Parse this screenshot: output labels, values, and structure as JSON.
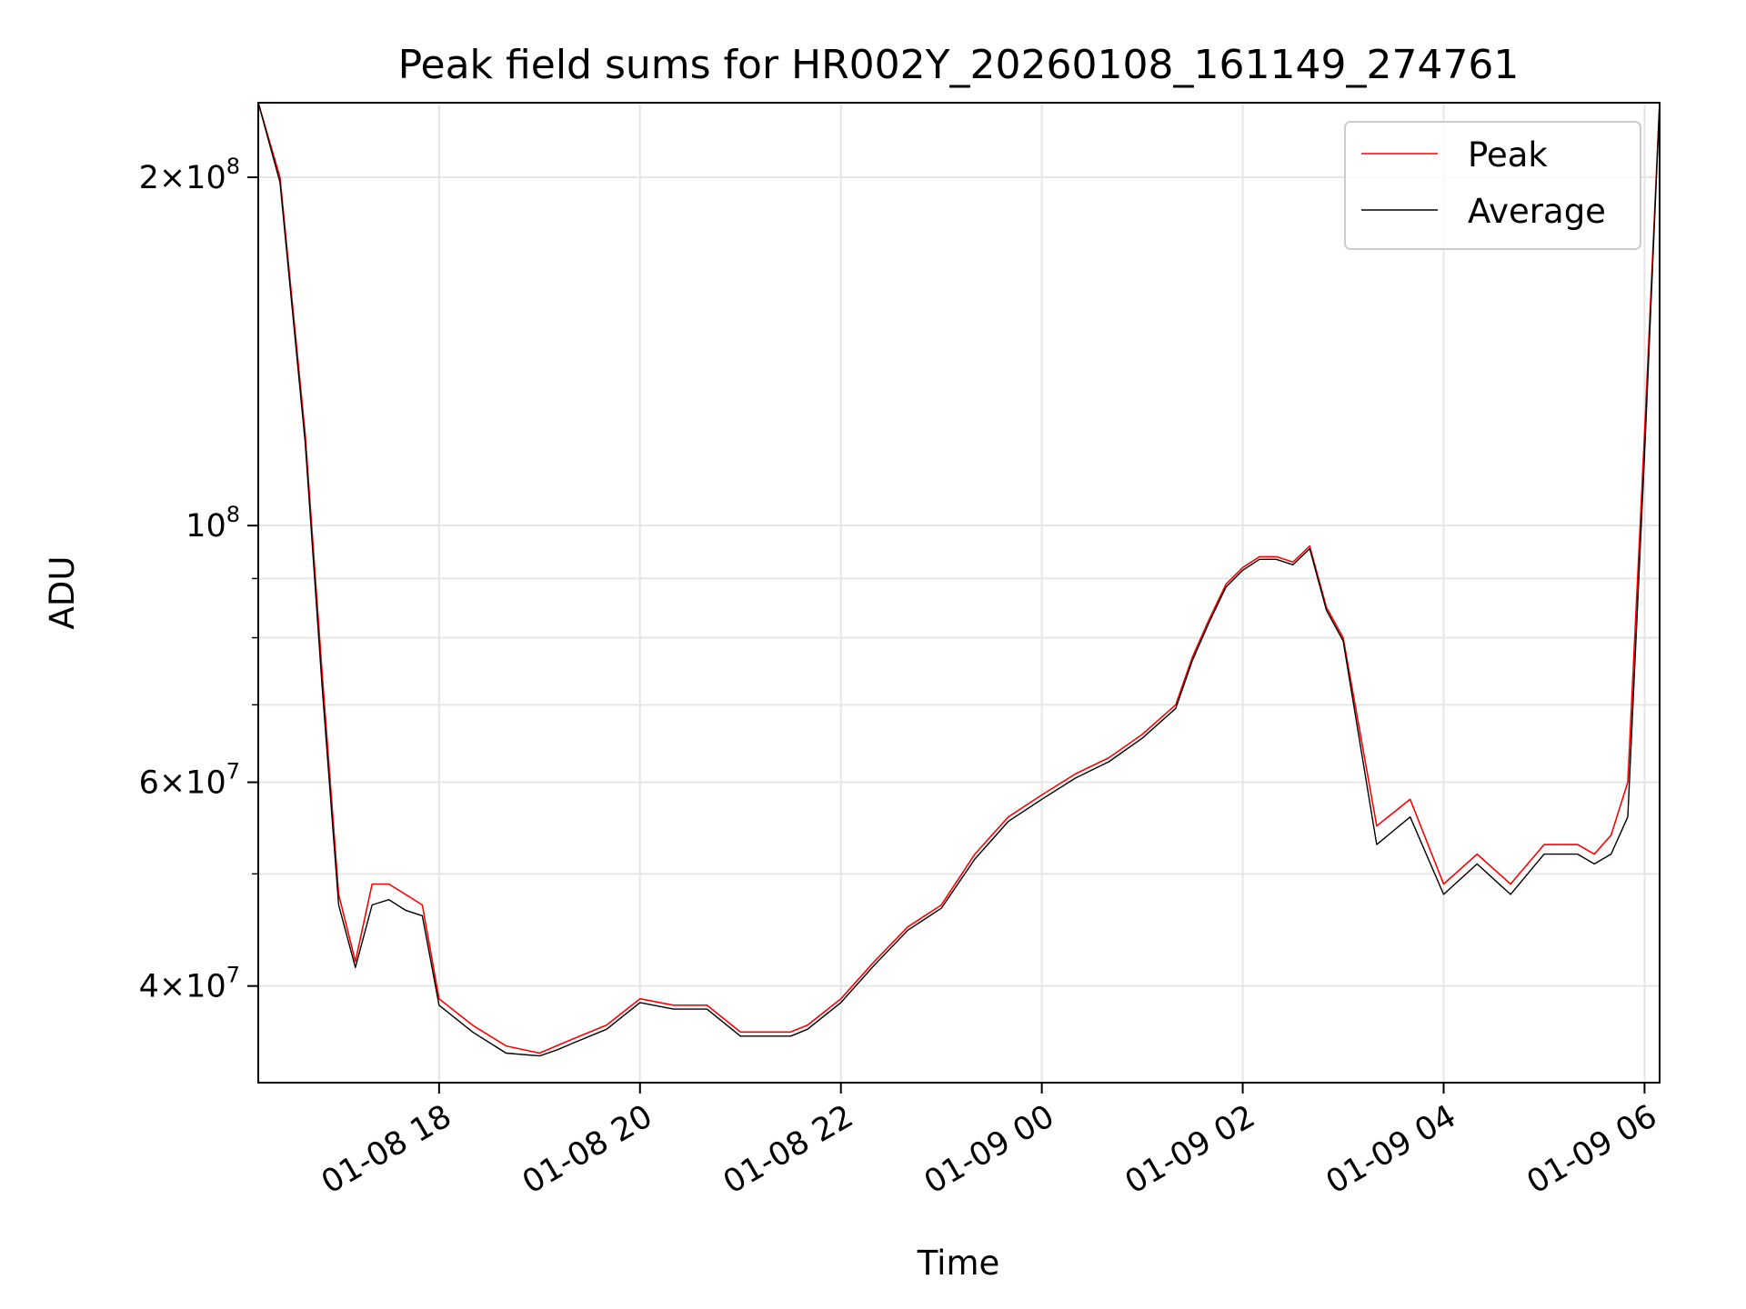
{
  "chart_data": {
    "type": "line",
    "title": "Peak field sums for HR002Y_20260108_161149_274761",
    "xlabel": "Time",
    "ylabel": "ADU",
    "yscale": "log",
    "ylim": [
      33000000,
      232000000
    ],
    "xlim": [
      "2026-01-08 16:12",
      "2026-01-09 06:09"
    ],
    "x_ticks": [
      "01-08 18",
      "01-08 20",
      "01-08 22",
      "01-09 00",
      "01-09 02",
      "01-09 04",
      "01-09 06"
    ],
    "y_ticks": [
      {
        "mantissa": "2",
        "exp": "8",
        "value": 200000000
      },
      {
        "mantissa": "",
        "exp": "8",
        "value": 100000000
      },
      {
        "mantissa": "6",
        "exp": "7",
        "value": 60000000
      },
      {
        "mantissa": "4",
        "exp": "7",
        "value": 40000000
      }
    ],
    "grid": true,
    "legend_position": "top-right",
    "colors": {
      "peak": "#ff0000",
      "average": "#000000"
    },
    "series": [
      {
        "name": "Peak",
        "x": [
          "2026-01-08 16:12",
          "2026-01-08 16:25",
          "2026-01-08 16:40",
          "2026-01-08 16:50",
          "2026-01-08 17:00",
          "2026-01-08 17:10",
          "2026-01-08 17:20",
          "2026-01-08 17:30",
          "2026-01-08 17:40",
          "2026-01-08 17:50",
          "2026-01-08 18:00",
          "2026-01-08 18:20",
          "2026-01-08 18:40",
          "2026-01-08 19:00",
          "2026-01-08 19:10",
          "2026-01-08 19:20",
          "2026-01-08 19:40",
          "2026-01-08 20:00",
          "2026-01-08 20:20",
          "2026-01-08 20:40",
          "2026-01-08 21:00",
          "2026-01-08 21:20",
          "2026-01-08 21:30",
          "2026-01-08 21:40",
          "2026-01-08 22:00",
          "2026-01-08 22:20",
          "2026-01-08 22:40",
          "2026-01-08 23:00",
          "2026-01-08 23:20",
          "2026-01-08 23:40",
          "2026-01-09 00:00",
          "2026-01-09 00:20",
          "2026-01-09 00:40",
          "2026-01-09 01:00",
          "2026-01-09 01:20",
          "2026-01-09 01:30",
          "2026-01-09 01:40",
          "2026-01-09 01:50",
          "2026-01-09 02:00",
          "2026-01-09 02:10",
          "2026-01-09 02:20",
          "2026-01-09 02:30",
          "2026-01-09 02:40",
          "2026-01-09 02:50",
          "2026-01-09 03:00",
          "2026-01-09 03:20",
          "2026-01-09 03:40",
          "2026-01-09 04:00",
          "2026-01-09 04:20",
          "2026-01-09 04:40",
          "2026-01-09 05:00",
          "2026-01-09 05:20",
          "2026-01-09 05:30",
          "2026-01-09 05:40",
          "2026-01-09 05:50",
          "2026-01-09 06:00",
          "2026-01-09 06:09"
        ],
        "y": [
          232000000,
          200000000,
          120000000,
          75000000,
          48000000,
          42000000,
          49000000,
          49000000,
          48000000,
          47000000,
          39000000,
          37000000,
          35500000,
          35000000,
          35500000,
          36000000,
          37000000,
          39000000,
          38500000,
          38500000,
          36500000,
          36500000,
          36500000,
          37000000,
          39000000,
          42000000,
          45000000,
          47000000,
          52000000,
          56000000,
          58500000,
          61000000,
          63000000,
          66000000,
          70000000,
          77000000,
          83000000,
          89000000,
          92000000,
          94000000,
          94000000,
          93000000,
          96000000,
          85000000,
          80000000,
          55000000,
          58000000,
          49000000,
          52000000,
          49000000,
          53000000,
          53000000,
          52000000,
          54000000,
          60000000,
          120000000,
          232000000
        ]
      },
      {
        "name": "Average",
        "x": [
          "2026-01-08 16:12",
          "2026-01-08 16:25",
          "2026-01-08 16:40",
          "2026-01-08 16:50",
          "2026-01-08 17:00",
          "2026-01-08 17:10",
          "2026-01-08 17:20",
          "2026-01-08 17:30",
          "2026-01-08 17:40",
          "2026-01-08 17:50",
          "2026-01-08 18:00",
          "2026-01-08 18:20",
          "2026-01-08 18:40",
          "2026-01-08 19:00",
          "2026-01-08 19:10",
          "2026-01-08 19:20",
          "2026-01-08 19:40",
          "2026-01-08 20:00",
          "2026-01-08 20:20",
          "2026-01-08 20:40",
          "2026-01-08 21:00",
          "2026-01-08 21:20",
          "2026-01-08 21:30",
          "2026-01-08 21:40",
          "2026-01-08 22:00",
          "2026-01-08 22:20",
          "2026-01-08 22:40",
          "2026-01-08 23:00",
          "2026-01-08 23:20",
          "2026-01-08 23:40",
          "2026-01-09 00:00",
          "2026-01-09 00:20",
          "2026-01-09 00:40",
          "2026-01-09 01:00",
          "2026-01-09 01:20",
          "2026-01-09 01:30",
          "2026-01-09 01:40",
          "2026-01-09 01:50",
          "2026-01-09 02:00",
          "2026-01-09 02:10",
          "2026-01-09 02:20",
          "2026-01-09 02:30",
          "2026-01-09 02:40",
          "2026-01-09 02:50",
          "2026-01-09 03:00",
          "2026-01-09 03:20",
          "2026-01-09 03:40",
          "2026-01-09 04:00",
          "2026-01-09 04:20",
          "2026-01-09 04:40",
          "2026-01-09 05:00",
          "2026-01-09 05:20",
          "2026-01-09 05:30",
          "2026-01-09 05:40",
          "2026-01-09 05:50",
          "2026-01-09 06:00",
          "2026-01-09 06:09"
        ],
        "y": [
          232000000,
          198000000,
          118000000,
          73000000,
          47000000,
          41500000,
          47000000,
          47500000,
          46500000,
          46000000,
          38500000,
          36500000,
          35000000,
          34800000,
          35200000,
          35700000,
          36700000,
          38700000,
          38200000,
          38200000,
          36200000,
          36200000,
          36200000,
          36700000,
          38700000,
          41700000,
          44700000,
          46700000,
          51500000,
          55500000,
          58000000,
          60500000,
          62500000,
          65500000,
          69500000,
          76500000,
          82500000,
          88500000,
          91500000,
          93500000,
          93500000,
          92500000,
          95500000,
          84500000,
          79500000,
          53000000,
          56000000,
          48000000,
          51000000,
          48000000,
          52000000,
          52000000,
          51000000,
          52000000,
          56000000,
          115000000,
          232000000
        ]
      }
    ]
  }
}
